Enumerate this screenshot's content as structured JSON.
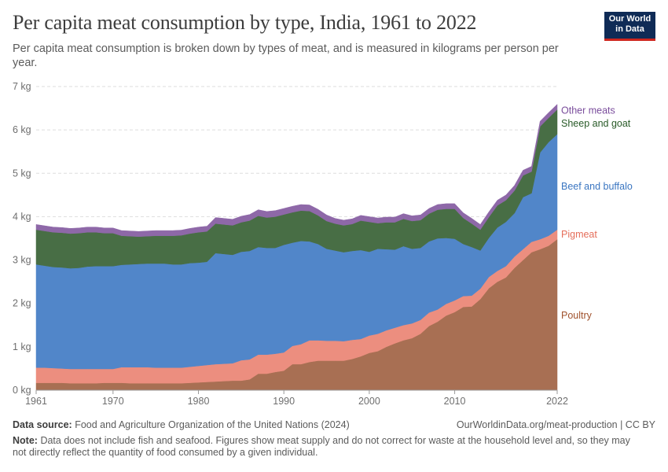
{
  "title": "Per capita meat consumption by type, India, 1961 to 2022",
  "subtitle": "Per capita meat consumption is broken down by types of meat, and is measured in kilograms per person per year.",
  "logo": {
    "line1": "Our World",
    "line2": "in Data",
    "bg": "#0f2b56",
    "accent": "#ce261e"
  },
  "footer": {
    "source_label": "Data source:",
    "source_text": "Food and Agriculture Organization of the United Nations (2024)",
    "url": "OurWorldinData.org/meat-production | CC BY",
    "note_label": "Note:",
    "note_text": "Data does not include fish and seafood. Figures show meat supply and do not correct for waste at the household level and, so they may not directly reflect the quantity of food consumed by a given individual."
  },
  "chart_data": {
    "type": "area",
    "stacked": true,
    "ylim": [
      0,
      7
    ],
    "yticks": [
      0,
      1,
      2,
      3,
      4,
      5,
      6,
      7
    ],
    "ytick_labels": [
      "0 kg",
      "1 kg",
      "2 kg",
      "3 kg",
      "4 kg",
      "5 kg",
      "6 kg",
      "7 kg"
    ],
    "xlim": [
      1961,
      2022
    ],
    "xticks": [
      1961,
      1970,
      1980,
      1990,
      2000,
      2010,
      2022
    ],
    "grid": true,
    "legend": "right, inline labels",
    "x": [
      1961,
      1962,
      1963,
      1964,
      1965,
      1966,
      1967,
      1968,
      1969,
      1970,
      1971,
      1972,
      1973,
      1974,
      1975,
      1976,
      1977,
      1978,
      1979,
      1980,
      1981,
      1982,
      1983,
      1984,
      1985,
      1986,
      1987,
      1988,
      1989,
      1990,
      1991,
      1992,
      1993,
      1994,
      1995,
      1996,
      1997,
      1998,
      1999,
      2000,
      2001,
      2002,
      2003,
      2004,
      2005,
      2006,
      2007,
      2008,
      2009,
      2010,
      2011,
      2012,
      2013,
      2014,
      2015,
      2016,
      2017,
      2018,
      2019,
      2020,
      2021,
      2022
    ],
    "series": [
      {
        "name": "Poultry",
        "color": "#a86f53",
        "label_color": "#a0522d",
        "values": [
          0.17,
          0.17,
          0.17,
          0.17,
          0.16,
          0.16,
          0.16,
          0.16,
          0.17,
          0.17,
          0.17,
          0.16,
          0.16,
          0.16,
          0.16,
          0.16,
          0.16,
          0.16,
          0.17,
          0.18,
          0.19,
          0.2,
          0.21,
          0.22,
          0.22,
          0.25,
          0.38,
          0.38,
          0.42,
          0.45,
          0.6,
          0.6,
          0.65,
          0.68,
          0.68,
          0.68,
          0.68,
          0.72,
          0.78,
          0.86,
          0.9,
          1.0,
          1.08,
          1.15,
          1.2,
          1.3,
          1.48,
          1.58,
          1.72,
          1.8,
          1.92,
          1.93,
          2.1,
          2.35,
          2.5,
          2.6,
          2.82,
          3.0,
          3.18,
          3.25,
          3.33,
          3.48
        ]
      },
      {
        "name": "Pigmeat",
        "color": "#ec8e7f",
        "label_color": "#e56e5a",
        "values": [
          0.35,
          0.35,
          0.34,
          0.33,
          0.33,
          0.33,
          0.33,
          0.33,
          0.32,
          0.32,
          0.36,
          0.37,
          0.37,
          0.37,
          0.36,
          0.36,
          0.36,
          0.36,
          0.37,
          0.38,
          0.39,
          0.4,
          0.4,
          0.4,
          0.47,
          0.46,
          0.44,
          0.44,
          0.42,
          0.42,
          0.42,
          0.46,
          0.5,
          0.47,
          0.46,
          0.46,
          0.45,
          0.44,
          0.4,
          0.4,
          0.4,
          0.38,
          0.36,
          0.35,
          0.34,
          0.32,
          0.31,
          0.28,
          0.27,
          0.27,
          0.25,
          0.25,
          0.24,
          0.26,
          0.25,
          0.26,
          0.26,
          0.25,
          0.24,
          0.23,
          0.23,
          0.22
        ]
      },
      {
        "name": "Beef and buffalo",
        "color": "#5186c9",
        "label_color": "#3b76c1",
        "values": [
          2.38,
          2.35,
          2.33,
          2.33,
          2.32,
          2.33,
          2.36,
          2.37,
          2.37,
          2.37,
          2.36,
          2.37,
          2.38,
          2.39,
          2.4,
          2.4,
          2.38,
          2.38,
          2.39,
          2.38,
          2.38,
          2.56,
          2.53,
          2.5,
          2.5,
          2.5,
          2.48,
          2.46,
          2.44,
          2.48,
          2.38,
          2.38,
          2.28,
          2.22,
          2.12,
          2.08,
          2.05,
          2.05,
          2.05,
          1.93,
          1.96,
          1.87,
          1.8,
          1.82,
          1.72,
          1.66,
          1.64,
          1.64,
          1.52,
          1.42,
          1.2,
          1.12,
          0.88,
          0.9,
          1.0,
          1.02,
          1.0,
          1.2,
          1.12,
          2.0,
          2.16,
          2.2
        ]
      },
      {
        "name": "Sheep and goat",
        "color": "#486e45",
        "label_color": "#285a27",
        "values": [
          0.8,
          0.8,
          0.8,
          0.8,
          0.8,
          0.8,
          0.79,
          0.78,
          0.76,
          0.76,
          0.67,
          0.65,
          0.63,
          0.63,
          0.64,
          0.64,
          0.66,
          0.67,
          0.68,
          0.7,
          0.7,
          0.68,
          0.68,
          0.68,
          0.68,
          0.7,
          0.72,
          0.7,
          0.72,
          0.7,
          0.7,
          0.7,
          0.7,
          0.66,
          0.64,
          0.62,
          0.62,
          0.62,
          0.68,
          0.69,
          0.59,
          0.62,
          0.63,
          0.63,
          0.64,
          0.64,
          0.64,
          0.66,
          0.67,
          0.69,
          0.6,
          0.54,
          0.48,
          0.48,
          0.51,
          0.5,
          0.52,
          0.5,
          0.5,
          0.6,
          0.56,
          0.57
        ]
      },
      {
        "name": "Other meats",
        "color": "#8e68a8",
        "label_color": "#7a4d9c",
        "values": [
          0.12,
          0.12,
          0.12,
          0.12,
          0.12,
          0.12,
          0.12,
          0.12,
          0.12,
          0.12,
          0.12,
          0.12,
          0.12,
          0.12,
          0.12,
          0.12,
          0.12,
          0.12,
          0.12,
          0.12,
          0.12,
          0.14,
          0.14,
          0.14,
          0.14,
          0.14,
          0.14,
          0.14,
          0.14,
          0.14,
          0.14,
          0.14,
          0.14,
          0.14,
          0.14,
          0.12,
          0.12,
          0.12,
          0.12,
          0.12,
          0.12,
          0.12,
          0.12,
          0.12,
          0.12,
          0.12,
          0.12,
          0.12,
          0.12,
          0.12,
          0.12,
          0.12,
          0.12,
          0.12,
          0.12,
          0.12,
          0.12,
          0.12,
          0.12,
          0.12,
          0.12,
          0.12
        ]
      }
    ],
    "series_label_values": {
      "Poultry": 1.72,
      "Pigmeat": 3.59,
      "Beef and buffalo": 4.7,
      "Sheep and goat": 6.15,
      "Other meats": 6.45
    }
  }
}
